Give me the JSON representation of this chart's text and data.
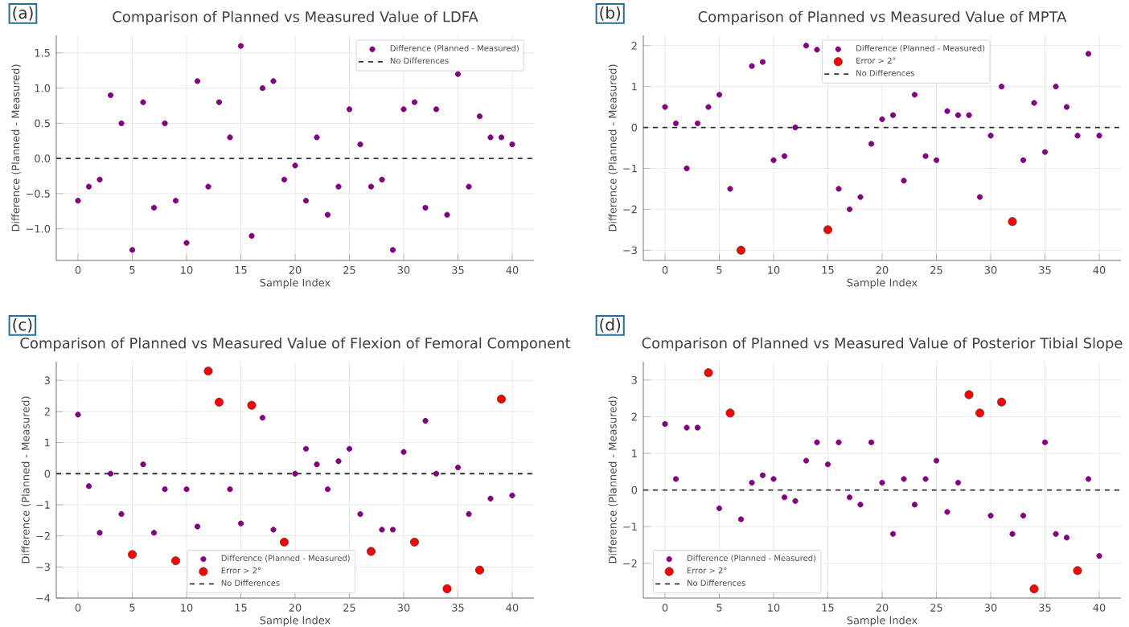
{
  "chart_data": [
    {
      "type": "scatter",
      "title": "Comparison of Planned vs Measured Value of LDFA",
      "xlabel": "Sample Index",
      "ylabel": "Difference (Planned - Measured)",
      "annotations": [
        "(a)"
      ],
      "x": [
        0,
        1,
        2,
        3,
        4,
        5,
        6,
        7,
        8,
        9,
        10,
        11,
        12,
        13,
        14,
        15,
        16,
        17,
        18,
        19,
        20,
        21,
        22,
        23,
        24,
        25,
        26,
        27,
        28,
        29,
        30,
        31,
        32,
        33,
        34,
        35,
        36,
        37,
        38,
        39,
        40
      ],
      "series": [
        {
          "name": "Difference (Planned - Measured)",
          "color": "#800080",
          "values": [
            -0.6,
            -0.4,
            -0.3,
            0.9,
            0.5,
            -1.3,
            0.8,
            -0.7,
            0.5,
            -0.6,
            -1.2,
            1.1,
            -0.4,
            0.8,
            0.3,
            1.6,
            -1.1,
            1.0,
            1.1,
            -0.3,
            -0.1,
            -0.6,
            0.3,
            -0.8,
            -0.4,
            0.7,
            0.2,
            -0.4,
            -0.3,
            -1.3,
            0.7,
            0.8,
            -0.7,
            0.7,
            -0.8,
            1.2,
            -0.4,
            0.6,
            0.3,
            0.3,
            0.2
          ]
        }
      ],
      "ref_lines": [
        {
          "axis": "y",
          "value": 0,
          "label": "No Differences",
          "color": "#333333",
          "line_style": "dashed"
        }
      ],
      "xlim": [
        -2,
        42
      ],
      "ylim": [
        -1.45,
        1.75
      ],
      "xticks": [
        0,
        5,
        10,
        15,
        20,
        25,
        30,
        35,
        40
      ],
      "yticks": [
        {
          "value": -1,
          "label": "−1.0"
        },
        {
          "value": -0.5,
          "label": "−0.5"
        },
        {
          "value": 0,
          "label": "0.0"
        },
        {
          "value": 0.5,
          "label": "0.5"
        },
        {
          "value": 1,
          "label": "1.0"
        },
        {
          "value": 1.5,
          "label": "1.5"
        }
      ],
      "grid": true,
      "legend": "top right"
    },
    {
      "type": "scatter",
      "title": "Comparison of Planned vs Measured Value of MPTA",
      "xlabel": "Sample Index",
      "ylabel": "Difference (Planned - Measured)",
      "annotations": [
        "(b)"
      ],
      "x": [
        0,
        1,
        2,
        3,
        4,
        5,
        6,
        7,
        8,
        9,
        10,
        11,
        12,
        13,
        14,
        15,
        16,
        17,
        18,
        19,
        20,
        21,
        22,
        23,
        24,
        25,
        26,
        27,
        28,
        29,
        30,
        31,
        32,
        33,
        34,
        35,
        36,
        37,
        38,
        39,
        40
      ],
      "series": [
        {
          "name": "Difference (Planned - Measured)",
          "color": "#800080",
          "values": [
            0.5,
            0.1,
            -1,
            0.1,
            0.5,
            0.8,
            -1.5,
            null,
            1.5,
            1.6,
            -0.8,
            -0.7,
            0,
            2.0,
            1.9,
            null,
            -1.5,
            -2,
            -1.7,
            -0.4,
            0.2,
            0.3,
            -1.3,
            0.8,
            -0.7,
            -0.8,
            0.4,
            0.3,
            0.3,
            -1.7,
            -0.2,
            1.0,
            null,
            -0.8,
            0.6,
            -0.6,
            1.0,
            0.5,
            -0.2,
            1.8,
            -0.2
          ]
        },
        {
          "name": "Error > 2°",
          "color": "#ff0000",
          "values": [
            null,
            null,
            null,
            null,
            null,
            null,
            null,
            -3,
            null,
            null,
            null,
            null,
            null,
            null,
            null,
            -2.5,
            null,
            null,
            null,
            null,
            null,
            null,
            null,
            null,
            null,
            null,
            null,
            null,
            null,
            null,
            null,
            null,
            -2.3,
            null,
            null,
            null,
            null,
            null,
            null,
            null,
            null
          ]
        }
      ],
      "ref_lines": [
        {
          "axis": "y",
          "value": 0,
          "label": "No Differences",
          "color": "#333333",
          "line_style": "dashed"
        }
      ],
      "xlim": [
        -2,
        42
      ],
      "ylim": [
        -3.25,
        2.25
      ],
      "xticks": [
        0,
        5,
        10,
        15,
        20,
        25,
        30,
        35,
        40
      ],
      "yticks": [
        {
          "value": -3,
          "label": "−3"
        },
        {
          "value": -2,
          "label": "−2"
        },
        {
          "value": -1,
          "label": "−1"
        },
        0,
        1,
        2
      ],
      "grid": true,
      "legend": "top"
    },
    {
      "type": "scatter",
      "title": "Comparison of Planned vs Measured Value of Flexion of Femoral Component",
      "xlabel": "Sample Index",
      "ylabel": "Difference (Planned - Measured)",
      "annotations": [
        "(c)"
      ],
      "x": [
        0,
        1,
        2,
        3,
        4,
        5,
        6,
        7,
        8,
        9,
        10,
        11,
        12,
        13,
        14,
        15,
        16,
        17,
        18,
        19,
        20,
        21,
        22,
        23,
        24,
        25,
        26,
        27,
        28,
        29,
        30,
        31,
        32,
        33,
        34,
        35,
        36,
        37,
        38,
        39,
        40
      ],
      "series": [
        {
          "name": "Difference (Planned - Measured)",
          "color": "#800080",
          "values": [
            1.9,
            -0.4,
            -1.9,
            0,
            -1.3,
            null,
            0.3,
            -1.9,
            -0.5,
            null,
            -0.5,
            -1.7,
            null,
            null,
            -0.5,
            -1.6,
            null,
            1.8,
            -1.8,
            null,
            0,
            0.8,
            0.3,
            -0.5,
            0.4,
            0.8,
            -1.3,
            null,
            -1.8,
            -1.8,
            0.7,
            null,
            1.7,
            0,
            null,
            0.2,
            -1.3,
            null,
            -0.8,
            null,
            -0.7
          ]
        },
        {
          "name": "Error > 2°",
          "color": "#ff0000",
          "values": [
            null,
            null,
            null,
            null,
            null,
            -2.6,
            null,
            null,
            null,
            -2.8,
            null,
            null,
            3.3,
            2.3,
            null,
            null,
            2.2,
            null,
            null,
            -2.2,
            null,
            null,
            null,
            null,
            null,
            null,
            null,
            -2.5,
            null,
            null,
            null,
            -2.2,
            null,
            null,
            -3.7,
            null,
            null,
            -3.1,
            null,
            2.4,
            null
          ]
        }
      ],
      "ref_lines": [
        {
          "axis": "y",
          "value": 0,
          "label": "No Differences",
          "color": "#333333",
          "line_style": "dashed"
        }
      ],
      "xlim": [
        -2,
        42
      ],
      "ylim": [
        -4,
        3.6
      ],
      "xticks": [
        0,
        5,
        10,
        15,
        20,
        25,
        30,
        35,
        40
      ],
      "yticks": [
        {
          "value": -4,
          "label": "−4"
        },
        {
          "value": -3,
          "label": "−3"
        },
        {
          "value": -2,
          "label": "−2"
        },
        {
          "value": -1,
          "label": "−1"
        },
        0,
        1,
        2,
        3
      ],
      "grid": true,
      "legend": "bottom"
    },
    {
      "type": "scatter",
      "title": "Comparison of Planned vs Measured Value of Posterior Tibial Slope",
      "xlabel": "Sample Index",
      "ylabel": "Difference (Planned - Measured)",
      "annotations": [
        "(d)"
      ],
      "x": [
        0,
        1,
        2,
        3,
        4,
        5,
        6,
        7,
        8,
        9,
        10,
        11,
        12,
        13,
        14,
        15,
        16,
        17,
        18,
        19,
        20,
        21,
        22,
        23,
        24,
        25,
        26,
        27,
        28,
        29,
        30,
        31,
        32,
        33,
        34,
        35,
        36,
        37,
        38,
        39,
        40
      ],
      "series": [
        {
          "name": "Difference (Planned - Measured)",
          "color": "#800080",
          "values": [
            1.8,
            0.3,
            1.7,
            1.7,
            null,
            -0.5,
            null,
            -0.8,
            0.2,
            0.4,
            0.3,
            -0.2,
            -0.3,
            0.8,
            1.3,
            0.7,
            1.3,
            -0.2,
            -0.4,
            1.3,
            0.2,
            -1.2,
            0.3,
            -0.4,
            0.3,
            0.8,
            -0.6,
            0.2,
            null,
            null,
            -0.7,
            null,
            -1.2,
            -0.7,
            null,
            1.3,
            -1.2,
            -1.3,
            null,
            0.3,
            -1.8
          ]
        },
        {
          "name": "Error > 2°",
          "color": "#ff0000",
          "values": [
            null,
            null,
            null,
            null,
            3.2,
            null,
            2.1,
            null,
            null,
            null,
            null,
            null,
            null,
            null,
            null,
            null,
            null,
            null,
            null,
            null,
            null,
            null,
            null,
            null,
            null,
            null,
            null,
            null,
            2.6,
            2.1,
            null,
            2.4,
            null,
            null,
            -2.7,
            null,
            null,
            null,
            -2.2,
            null,
            null
          ]
        }
      ],
      "ref_lines": [
        {
          "axis": "y",
          "value": 0,
          "label": "No Differences",
          "color": "#333333",
          "line_style": "dashed"
        }
      ],
      "xlim": [
        -2,
        42
      ],
      "ylim": [
        -2.95,
        3.5
      ],
      "xticks": [
        0,
        5,
        10,
        15,
        20,
        25,
        30,
        35,
        40
      ],
      "yticks": [
        {
          "value": -2,
          "label": "−2"
        },
        {
          "value": -1,
          "label": "−1"
        },
        0,
        1,
        2,
        3
      ],
      "grid": true,
      "legend": "bottom left"
    }
  ]
}
